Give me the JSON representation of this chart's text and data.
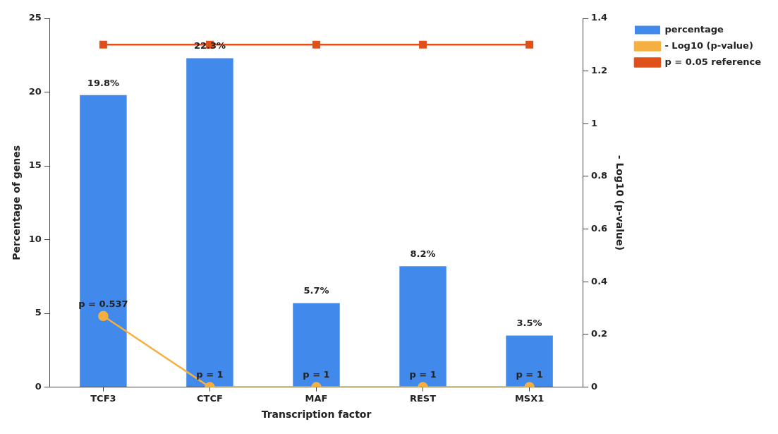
{
  "chart_data": {
    "type": "bar",
    "categories": [
      "TCF3",
      "CTCF",
      "MAF",
      "REST",
      "MSX1"
    ],
    "series": [
      {
        "name": "percentage",
        "color": "#4189ea",
        "values": [
          19.8,
          22.3,
          5.7,
          8.2,
          3.5
        ],
        "value_labels": [
          "19.8%",
          "22.3%",
          "5.7%",
          "8.2%",
          "3.5%"
        ]
      },
      {
        "name": "- Log10 (p-value)",
        "type": "line",
        "axis": "y2",
        "marker": "circle",
        "color": "#f5b041",
        "values": [
          0.27,
          0,
          0,
          0,
          0
        ]
      },
      {
        "name": "p = 0.05 reference",
        "type": "line",
        "axis": "y2",
        "marker": "square",
        "color": "#e0501b",
        "values": [
          1.3,
          1.3,
          1.3,
          1.3,
          1.3
        ]
      }
    ],
    "xlabel": "Transcription factor",
    "ylabel": "Percentage of genes",
    "y2label": "- Log10 (p-value)",
    "ylim": [
      0,
      25
    ],
    "yticks": [
      0,
      5,
      10,
      15,
      20,
      25
    ],
    "y2lim": [
      0,
      1.4
    ],
    "y2ticks": [
      0,
      0.2,
      0.4,
      0.6,
      0.8,
      1,
      1.2,
      1.4
    ],
    "annotations": [
      "p = 0.537",
      "p = 1",
      "p = 1",
      "p = 1",
      "p = 1"
    ],
    "grid": false,
    "legend": "top right"
  }
}
